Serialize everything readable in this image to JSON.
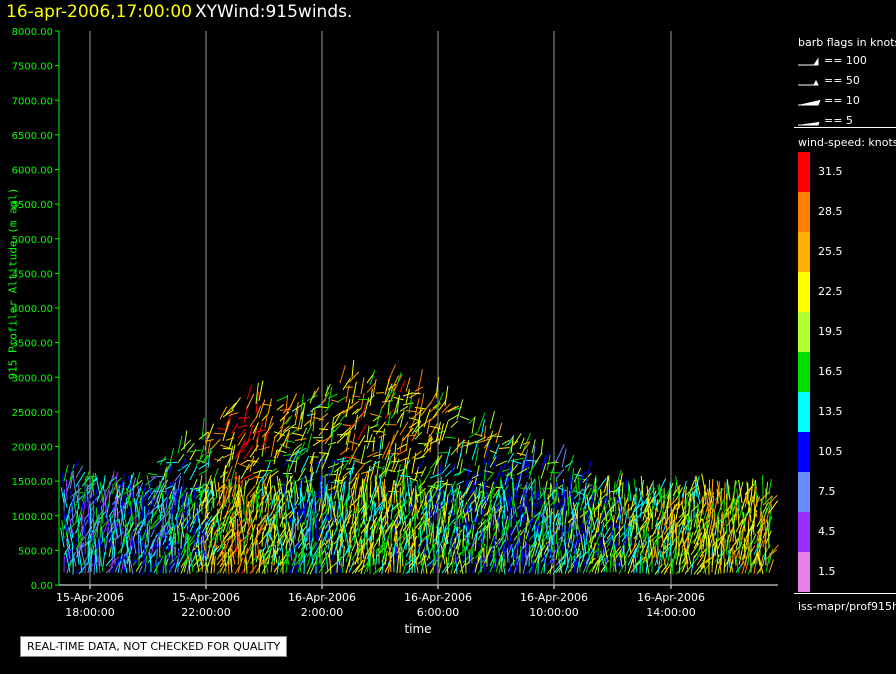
{
  "header": {
    "time_label": "16-apr-2006,17:00:00",
    "product_label": "XYWind:915winds."
  },
  "chart_data": {
    "type": "scatter",
    "title": "16-apr-2006,17:00:00  XYWind:915winds.",
    "ylabel": "915 Profiler Altitude (m agl)",
    "xlabel": "time",
    "ylim": [
      0,
      8000
    ],
    "yticks": [
      "0.00",
      "500.00",
      "1000.00",
      "1500.00",
      "2000.00",
      "2500.00",
      "3000.00",
      "3500.00",
      "4000.00",
      "4500.00",
      "5000.00",
      "5500.00",
      "6000.00",
      "6500.00",
      "7000.00",
      "7500.00",
      "8000.00"
    ],
    "xticks": [
      {
        "date": "15-Apr-2006",
        "time": "18:00:00"
      },
      {
        "date": "15-Apr-2006",
        "time": "22:00:00"
      },
      {
        "date": "16-Apr-2006",
        "time": "2:00:00"
      },
      {
        "date": "16-Apr-2006",
        "time": "6:00:00"
      },
      {
        "date": "16-Apr-2006",
        "time": "10:00:00"
      },
      {
        "date": "16-Apr-2006",
        "time": "14:00:00"
      }
    ],
    "grid": "vertical at time ticks",
    "series": [
      {
        "time_hours_from_xmin": [
          0,
          2,
          4,
          6,
          8,
          10,
          12,
          14,
          16,
          18,
          20,
          22
        ],
        "max_altitude_m": [
          1600,
          1500,
          1900,
          2700,
          2600,
          3000,
          2900,
          2400,
          2000,
          1500,
          1300,
          1300
        ],
        "typical_speed_knots": [
          11,
          12,
          13,
          25,
          14,
          20,
          18,
          16,
          13,
          15,
          19,
          21
        ]
      }
    ]
  },
  "legend": {
    "barb_title": "barb flags in knots",
    "barb_items": [
      "== 100",
      "== 50",
      "== 10",
      "== 5"
    ],
    "speed_title": "wind-speed: knots",
    "speed_items": [
      {
        "label": "31.5",
        "color": "#ff0000"
      },
      {
        "label": "28.5",
        "color": "#ff8000"
      },
      {
        "label": "25.5",
        "color": "#ffb000"
      },
      {
        "label": "22.5",
        "color": "#ffff00"
      },
      {
        "label": "19.5",
        "color": "#b0ff30"
      },
      {
        "label": "16.5",
        "color": "#00e000"
      },
      {
        "label": "13.5",
        "color": "#00ffff"
      },
      {
        "label": "10.5",
        "color": "#0000ff"
      },
      {
        "label": "7.5",
        "color": "#6a8cff"
      },
      {
        "label": "4.5",
        "color": "#9a30ff"
      },
      {
        "label": "1.5",
        "color": "#e680e6"
      }
    ],
    "footer_id": "iss-mapr/prof915h"
  },
  "qc_note": "REAL-TIME DATA, NOT CHECKED FOR QUALITY"
}
